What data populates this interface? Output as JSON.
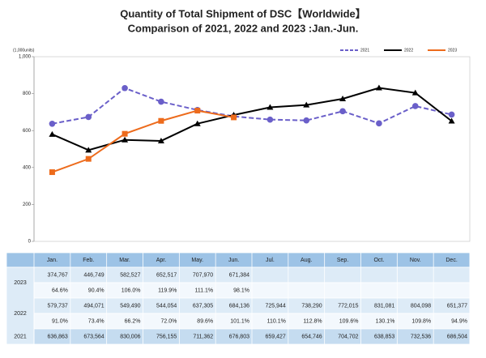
{
  "chart_data": {
    "type": "line",
    "title": "Quantity of Total Shipment of DSC【Worldwide】",
    "subtitle": "Comparison of 2021, 2022 and 2023 :Jan.-Jun.",
    "y_label": "(1,000units)",
    "categories": [
      "Jan.",
      "Feb.",
      "Mar.",
      "Apr.",
      "May.",
      "Jun.",
      "Jul.",
      "Aug.",
      "Sep.",
      "Oct.",
      "Nov.",
      "Dec."
    ],
    "ylim": [
      0,
      1000
    ],
    "yticks": [
      0,
      200,
      400,
      600,
      800,
      {
        "value": 1000,
        "label": "1,000"
      }
    ],
    "grid": false,
    "legend": "top-right",
    "series": [
      {
        "name": "2021",
        "color": "#6a5fc9",
        "dash": true,
        "marker": "circle",
        "values": [
          636.863,
          673.564,
          830.006,
          756.155,
          711.362,
          676.803,
          659.427,
          654.746,
          704.702,
          638.853,
          732.536,
          686.504
        ],
        "value_labels": [
          "636,863",
          "673,564",
          "830,006",
          "756,155",
          "711,362",
          "676,803",
          "659,427",
          "654,746",
          "704,702",
          "638,853",
          "732,536",
          "686,504"
        ]
      },
      {
        "name": "2022",
        "color": "#000000",
        "dash": false,
        "marker": "triangle",
        "values": [
          579.737,
          494.071,
          549.49,
          544.054,
          637.305,
          684.136,
          725.944,
          738.29,
          772.015,
          831.081,
          804.098,
          651.377
        ],
        "value_labels": [
          "579,737",
          "494,071",
          "549,490",
          "544,054",
          "637,305",
          "684,136",
          "725,944",
          "738,290",
          "772,015",
          "831,081",
          "804,098",
          "651,377"
        ],
        "yoy_labels": [
          "91.0%",
          "73.4%",
          "66.2%",
          "72.0%",
          "89.6%",
          "101.1%",
          "110.1%",
          "112.8%",
          "109.6%",
          "130.1%",
          "109.8%",
          "94.9%"
        ]
      },
      {
        "name": "2023",
        "color": "#ed6b1c",
        "dash": false,
        "marker": "square",
        "values": [
          374.767,
          446.749,
          582.527,
          652.517,
          707.97,
          671.384,
          null,
          null,
          null,
          null,
          null,
          null
        ],
        "value_labels": [
          "374,767",
          "446,749",
          "582,527",
          "652,517",
          "707,970",
          "671,384",
          null,
          null,
          null,
          null,
          null,
          null
        ],
        "yoy_labels": [
          "64.6%",
          "90.4%",
          "106.0%",
          "119.9%",
          "111.1%",
          "98.1%",
          null,
          null,
          null,
          null,
          null,
          null
        ]
      }
    ]
  }
}
